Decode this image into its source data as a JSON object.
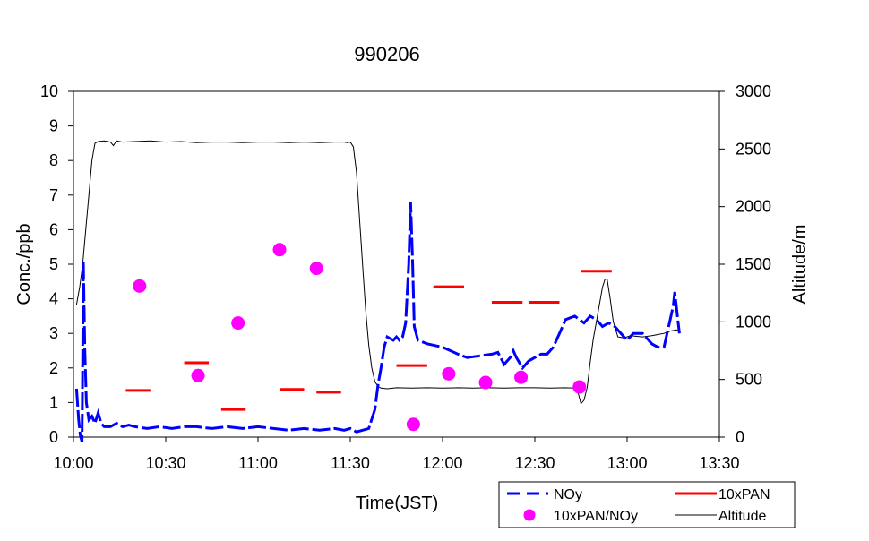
{
  "chart_data": {
    "type": "line",
    "title": "990206",
    "xlabel": "Time(JST)",
    "ylabel": "Conc./ppb",
    "y2label": "Altitude/m",
    "xlim": [
      600,
      810
    ],
    "ylim": [
      0,
      10
    ],
    "y2lim": [
      0,
      3000
    ],
    "x_ticks": [
      {
        "value": 600,
        "label": "10:00"
      },
      {
        "value": 630,
        "label": "10:30"
      },
      {
        "value": 660,
        "label": "11:00"
      },
      {
        "value": 690,
        "label": "11:30"
      },
      {
        "value": 720,
        "label": "12:00"
      },
      {
        "value": 750,
        "label": "12:30"
      },
      {
        "value": 780,
        "label": "13:00"
      },
      {
        "value": 810,
        "label": "13:30"
      }
    ],
    "y_ticks": [
      "0",
      "1",
      "2",
      "3",
      "4",
      "5",
      "6",
      "7",
      "8",
      "9",
      "10"
    ],
    "y2_ticks": [
      "0",
      "500",
      "1000",
      "1500",
      "2000",
      "2500",
      "3000"
    ],
    "grid": false,
    "legend": {
      "placement": "bottom-right",
      "entries": [
        {
          "label": "NOy",
          "style": "dashed-line",
          "color": "#0000ff"
        },
        {
          "label": "10xPAN",
          "style": "segment",
          "color": "#ff0000"
        },
        {
          "label": "10xPAN/NOy",
          "style": "marker",
          "color": "#ff00ff"
        },
        {
          "label": "Altitude",
          "style": "thin-line",
          "color": "#000000"
        }
      ]
    },
    "series": [
      {
        "name": "NOy",
        "axis": "left",
        "color": "#0000ff",
        "points": [
          [
            601.0,
            1.4
          ],
          [
            601.7,
            0.5
          ],
          [
            602.2,
            0.05
          ],
          [
            602.8,
            -0.15
          ],
          [
            603.2,
            5.1
          ],
          [
            603.7,
            2.5
          ],
          [
            604.2,
            1.0
          ],
          [
            605,
            0.5
          ],
          [
            606,
            0.6
          ],
          [
            607,
            0.4
          ],
          [
            608,
            0.7
          ],
          [
            609,
            0.4
          ],
          [
            610,
            0.3
          ],
          [
            612,
            0.3
          ],
          [
            614,
            0.4
          ],
          [
            616,
            0.3
          ],
          [
            618,
            0.35
          ],
          [
            620,
            0.3
          ],
          [
            624,
            0.25
          ],
          [
            628,
            0.3
          ],
          [
            632,
            0.25
          ],
          [
            636,
            0.3
          ],
          [
            640,
            0.3
          ],
          [
            645,
            0.25
          ],
          [
            650,
            0.3
          ],
          [
            655,
            0.25
          ],
          [
            660,
            0.3
          ],
          [
            665,
            0.25
          ],
          [
            670,
            0.2
          ],
          [
            675,
            0.25
          ],
          [
            680,
            0.2
          ],
          [
            685,
            0.25
          ],
          [
            688,
            0.2
          ],
          [
            690,
            0.25
          ],
          [
            692,
            0.15
          ],
          [
            694,
            0.2
          ],
          [
            696,
            0.25
          ],
          [
            698,
            0.8
          ],
          [
            699,
            1.5
          ],
          [
            700,
            2.0
          ],
          [
            701,
            2.6
          ],
          [
            702,
            2.9
          ],
          [
            704,
            2.8
          ],
          [
            705,
            2.9
          ],
          [
            706,
            2.8
          ],
          [
            707,
            2.9
          ],
          [
            708,
            3.3
          ],
          [
            709,
            5.0
          ],
          [
            709.6,
            6.8
          ],
          [
            710.2,
            5.2
          ],
          [
            710.8,
            3.2
          ],
          [
            712,
            2.8
          ],
          [
            715,
            2.7
          ],
          [
            720,
            2.6
          ],
          [
            725,
            2.4
          ],
          [
            728,
            2.3
          ],
          [
            732,
            2.35
          ],
          [
            736,
            2.4
          ],
          [
            738,
            2.45
          ],
          [
            740,
            2.1
          ],
          [
            742,
            2.3
          ],
          [
            743,
            2.5
          ],
          [
            744,
            2.3
          ],
          [
            746,
            2.0
          ],
          [
            748,
            2.2
          ],
          [
            750,
            2.3
          ],
          [
            752,
            2.4
          ],
          [
            754,
            2.4
          ],
          [
            756,
            2.6
          ],
          [
            758,
            3.0
          ],
          [
            760,
            3.4
          ],
          [
            763,
            3.5
          ],
          [
            766,
            3.3
          ],
          [
            768,
            3.5
          ],
          [
            770,
            3.4
          ],
          [
            772,
            3.2
          ],
          [
            774,
            3.3
          ],
          [
            776,
            3.2
          ],
          [
            778,
            3.0
          ],
          [
            780,
            2.8
          ],
          [
            782,
            3.0
          ],
          [
            785,
            3.0
          ],
          [
            788,
            2.7
          ],
          [
            790,
            2.6
          ],
          [
            792,
            2.6
          ],
          [
            793,
            3.0
          ],
          [
            794,
            3.4
          ],
          [
            795,
            3.8
          ],
          [
            795.5,
            4.2
          ],
          [
            796,
            3.8
          ],
          [
            796.5,
            3.4
          ],
          [
            797,
            3.0
          ]
        ]
      },
      {
        "name": "Altitude",
        "axis": "right",
        "color": "#000000",
        "points": [
          [
            601.0,
            1150
          ],
          [
            602,
            1300
          ],
          [
            603,
            1500
          ],
          [
            604,
            1800
          ],
          [
            605,
            2100
          ],
          [
            606,
            2400
          ],
          [
            607,
            2550
          ],
          [
            608,
            2565
          ],
          [
            610,
            2570
          ],
          [
            612,
            2560
          ],
          [
            613,
            2530
          ],
          [
            614,
            2570
          ],
          [
            616,
            2560
          ],
          [
            620,
            2565
          ],
          [
            625,
            2570
          ],
          [
            630,
            2560
          ],
          [
            635,
            2565
          ],
          [
            640,
            2555
          ],
          [
            645,
            2560
          ],
          [
            650,
            2560
          ],
          [
            655,
            2555
          ],
          [
            660,
            2560
          ],
          [
            665,
            2560
          ],
          [
            670,
            2555
          ],
          [
            675,
            2560
          ],
          [
            680,
            2555
          ],
          [
            685,
            2560
          ],
          [
            688,
            2560
          ],
          [
            689,
            2555
          ],
          [
            690,
            2560
          ],
          [
            691,
            2520
          ],
          [
            692,
            2300
          ],
          [
            693,
            1900
          ],
          [
            694,
            1500
          ],
          [
            695,
            1100
          ],
          [
            696,
            800
          ],
          [
            697,
            600
          ],
          [
            698,
            480
          ],
          [
            699,
            440
          ],
          [
            700,
            425
          ],
          [
            702,
            420
          ],
          [
            705,
            428
          ],
          [
            710,
            425
          ],
          [
            715,
            428
          ],
          [
            720,
            425
          ],
          [
            725,
            428
          ],
          [
            730,
            425
          ],
          [
            735,
            428
          ],
          [
            740,
            425
          ],
          [
            745,
            428
          ],
          [
            750,
            428
          ],
          [
            755,
            425
          ],
          [
            760,
            428
          ],
          [
            763,
            425
          ],
          [
            764,
            390
          ],
          [
            765,
            290
          ],
          [
            766,
            320
          ],
          [
            767,
            430
          ],
          [
            768,
            650
          ],
          [
            769,
            850
          ],
          [
            770,
            1000
          ],
          [
            771,
            1150
          ],
          [
            772,
            1300
          ],
          [
            772.8,
            1370
          ],
          [
            773.5,
            1370
          ],
          [
            774.5,
            1200
          ],
          [
            775.5,
            1000
          ],
          [
            777,
            870
          ],
          [
            779,
            860
          ],
          [
            781,
            880
          ],
          [
            785,
            870
          ],
          [
            788,
            880
          ],
          [
            790,
            890
          ],
          [
            792,
            900
          ],
          [
            794,
            920
          ],
          [
            796,
            930
          ],
          [
            797,
            920
          ]
        ]
      }
    ],
    "pan_segments": {
      "name": "10xPAN",
      "axis": "left",
      "color": "#ff0000",
      "segments": [
        {
          "x0": 617,
          "x1": 625,
          "y": 1.35
        },
        {
          "x0": 636,
          "x1": 644,
          "y": 2.15
        },
        {
          "x0": 648,
          "x1": 656,
          "y": 0.8
        },
        {
          "x0": 667,
          "x1": 675,
          "y": 1.38
        },
        {
          "x0": 679,
          "x1": 687,
          "y": 1.3
        },
        {
          "x0": 705,
          "x1": 715,
          "y": 2.07
        },
        {
          "x0": 717,
          "x1": 727,
          "y": 4.35
        },
        {
          "x0": 736,
          "x1": 746,
          "y": 3.9
        },
        {
          "x0": 748,
          "x1": 758,
          "y": 3.9
        },
        {
          "x0": 765,
          "x1": 775,
          "y": 4.8
        }
      ]
    },
    "ratio_points": {
      "name": "10xPAN/NOy",
      "axis": "left",
      "color": "#ff00ff",
      "points": [
        [
          621.5,
          4.37
        ],
        [
          640.5,
          1.78
        ],
        [
          653.5,
          3.3
        ],
        [
          667,
          5.42
        ],
        [
          679,
          4.88
        ],
        [
          710.5,
          0.37
        ],
        [
          722,
          1.83
        ],
        [
          734,
          1.58
        ],
        [
          745.5,
          1.73
        ],
        [
          764.5,
          1.45
        ]
      ]
    }
  }
}
